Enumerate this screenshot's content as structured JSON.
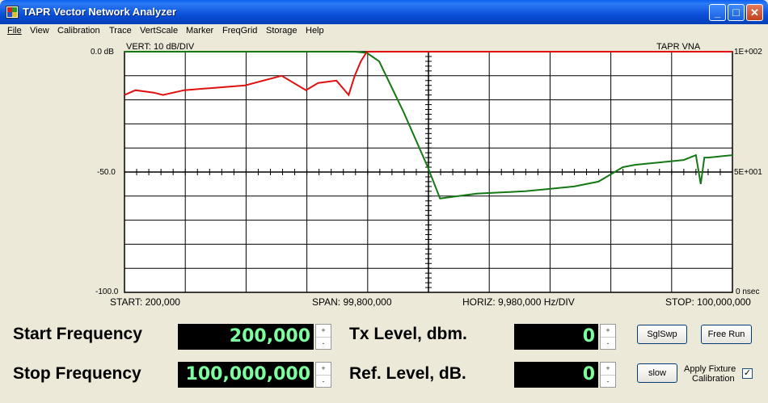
{
  "window": {
    "title": "TAPR Vector Network Analyzer",
    "minimize_glyph": "_",
    "maximize_glyph": "□",
    "close_glyph": "✕"
  },
  "menu": [
    "File",
    "View",
    "Calibration",
    "Trace",
    "VertScale",
    "Marker",
    "FreqGrid",
    "Storage",
    "Help"
  ],
  "graph": {
    "vert_label": "VERT: 10 dB/DIV",
    "brand": "TAPR VNA",
    "left_ticks": [
      "0.0 dB",
      "-50.0",
      "-100.0"
    ],
    "right_ticks": [
      "1E+002",
      "5E+001",
      "0 nsec"
    ],
    "bottom": {
      "start": "START: 200,000",
      "span": "SPAN: 99,800,000",
      "horiz": "HORIZ: 9,980,000 Hz/DIV",
      "stop": "STOP: 100,000,000"
    },
    "colors": {
      "green": "#147814",
      "red": "#e01010",
      "grid": "#000000",
      "bg": "#ffffff"
    }
  },
  "chart_data": {
    "type": "line",
    "x_unit": "Hz",
    "xlim": [
      200000,
      100000000
    ],
    "ylim": [
      -100,
      0
    ],
    "y2lim": [
      0,
      100
    ],
    "series": [
      {
        "color": "#147814",
        "x": [
          200000,
          30000000,
          38000000,
          40000000,
          42000000,
          46000000,
          50000000,
          52000000,
          55000000,
          58000000,
          62000000,
          66000000,
          70000000,
          74000000,
          78000000,
          80000000,
          82000000,
          84000000,
          88000000,
          92000000,
          94000000,
          94800000,
          95400000,
          96000000,
          100000000
        ],
        "y": [
          0,
          0,
          0,
          -0.5,
          -4,
          -25,
          -48,
          -61,
          -60,
          -59,
          -58.5,
          -58,
          -57,
          -56,
          -54,
          -51,
          -48,
          -47,
          -46,
          -45,
          -43,
          -55,
          -44,
          -44,
          -43
        ]
      },
      {
        "color": "#e01010",
        "x": [
          200000,
          2000000,
          5000000,
          6500000,
          10000000,
          15000000,
          20000000,
          26000000,
          30000000,
          32000000,
          35000000,
          37000000,
          38000000,
          39000000,
          40000000,
          100000000
        ],
        "y2": [
          82,
          84,
          83,
          82,
          84,
          85,
          86,
          90,
          84,
          87,
          88,
          82,
          90,
          96,
          100,
          100
        ]
      }
    ]
  },
  "controls": {
    "start_label": "Start Frequency",
    "start_value": "200,000",
    "stop_label": "Stop Frequency",
    "stop_value": "100,000,000",
    "tx_label": "Tx Level, dbm.",
    "tx_value": "0",
    "ref_label": "Ref. Level, dB.",
    "ref_value": "0",
    "spin_up": "+",
    "spin_down": "-",
    "sglswp": "SglSwp",
    "freerun": "Free Run",
    "slow": "slow",
    "apply_fixture": "Apply Fixture",
    "calibration": "Calibration",
    "check": "✓"
  }
}
